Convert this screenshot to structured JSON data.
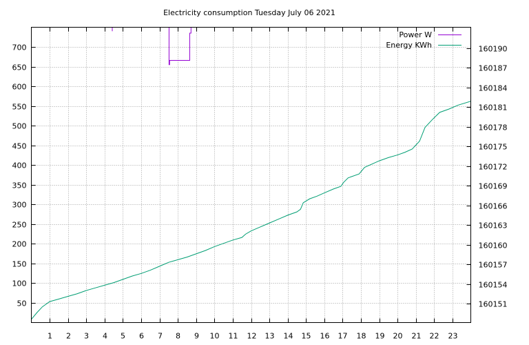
{
  "chart_data": {
    "type": "line",
    "title": "Electricity consumption Tuesday July 06 2021",
    "xlabel": "",
    "ylabel": "",
    "y2label": "",
    "xlim": [
      0,
      24
    ],
    "ylim": [
      0,
      750
    ],
    "y2lim": [
      160148.1,
      160193.2
    ],
    "x_ticks": [
      1,
      2,
      3,
      4,
      5,
      6,
      7,
      8,
      9,
      10,
      11,
      12,
      13,
      14,
      15,
      16,
      17,
      18,
      19,
      20,
      21,
      22,
      23
    ],
    "y_ticks": [
      50,
      100,
      150,
      200,
      250,
      300,
      350,
      400,
      450,
      500,
      550,
      600,
      650,
      700
    ],
    "y2_ticks": [
      160151,
      160154,
      160157,
      160160,
      160163,
      160166,
      160169,
      160172,
      160175,
      160178,
      160181,
      160184,
      160187,
      160190
    ],
    "grid": true,
    "legend_position": "top-right",
    "series": [
      {
        "name": "Power W",
        "color": "#9400d3",
        "axis": "left",
        "segments": [
          [
            [
              4.42,
              750
            ],
            [
              4.42,
              740
            ]
          ],
          [
            [
              7.52,
              750
            ],
            [
              7.52,
              655
            ],
            [
              7.55,
              655
            ],
            [
              7.55,
              666
            ],
            [
              8.65,
              666
            ],
            [
              8.65,
              735
            ],
            [
              8.72,
              735
            ],
            [
              8.72,
              750
            ]
          ]
        ]
      },
      {
        "name": "Energy KWh",
        "color": "#009e73",
        "axis": "right",
        "points": [
          [
            0,
            160148.6
          ],
          [
            0.3,
            160149.6
          ],
          [
            0.6,
            160150.5
          ],
          [
            1,
            160151.3
          ],
          [
            1.5,
            160151.7
          ],
          [
            2,
            160152.1
          ],
          [
            2.5,
            160152.5
          ],
          [
            3,
            160153.0
          ],
          [
            3.5,
            160153.4
          ],
          [
            4,
            160153.8
          ],
          [
            4.5,
            160154.2
          ],
          [
            5,
            160154.7
          ],
          [
            5.5,
            160155.2
          ],
          [
            6,
            160155.6
          ],
          [
            6.5,
            160156.1
          ],
          [
            7,
            160156.7
          ],
          [
            7.5,
            160157.3
          ],
          [
            8,
            160157.7
          ],
          [
            8.5,
            160158.1
          ],
          [
            9,
            160158.6
          ],
          [
            9.5,
            160159.1
          ],
          [
            10,
            160159.7
          ],
          [
            10.5,
            160160.2
          ],
          [
            11,
            160160.7
          ],
          [
            11.5,
            160161.1
          ],
          [
            11.7,
            160161.6
          ],
          [
            12,
            160162.1
          ],
          [
            12.5,
            160162.7
          ],
          [
            13,
            160163.3
          ],
          [
            13.5,
            160163.9
          ],
          [
            14,
            160164.5
          ],
          [
            14.5,
            160165.0
          ],
          [
            14.7,
            160165.4
          ],
          [
            14.85,
            160166.4
          ],
          [
            15.2,
            160167.0
          ],
          [
            15.6,
            160167.4
          ],
          [
            16,
            160167.9
          ],
          [
            16.5,
            160168.5
          ],
          [
            16.9,
            160168.9
          ],
          [
            17.05,
            160169.5
          ],
          [
            17.3,
            160170.2
          ],
          [
            17.9,
            160170.8
          ],
          [
            18.2,
            160171.8
          ],
          [
            18.6,
            160172.3
          ],
          [
            19,
            160172.8
          ],
          [
            19.5,
            160173.3
          ],
          [
            20,
            160173.7
          ],
          [
            20.4,
            160174.1
          ],
          [
            20.8,
            160174.6
          ],
          [
            21.2,
            160175.8
          ],
          [
            21.5,
            160177.9
          ],
          [
            21.9,
            160179.1
          ],
          [
            22.3,
            160180.2
          ],
          [
            22.8,
            160180.7
          ],
          [
            23.3,
            160181.3
          ],
          [
            24,
            160181.9
          ]
        ]
      }
    ]
  }
}
